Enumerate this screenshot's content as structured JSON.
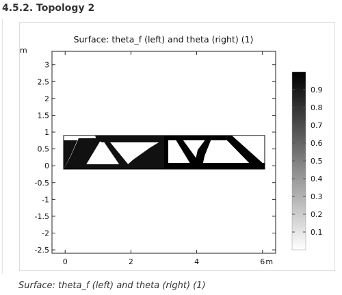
{
  "section": {
    "title": "4.5.2. Topology 2"
  },
  "figure": {
    "caption": "Surface: theta_f (left) and theta (right) (1)"
  },
  "chart_data": {
    "type": "heatmap",
    "title": "Surface: theta_f (left) and theta (right) (1)",
    "unit_label": "m",
    "x_unit": "m",
    "xlim": [
      -0.4,
      6.4
    ],
    "ylim": [
      -2.6,
      3.4
    ],
    "x_ticks": [
      {
        "value": 0,
        "label": "0"
      },
      {
        "value": 2,
        "label": "2"
      },
      {
        "value": 4,
        "label": "4"
      },
      {
        "value": 6,
        "label": "6"
      }
    ],
    "y_ticks": [
      {
        "value": 3,
        "label": "3"
      },
      {
        "value": 2.5,
        "label": "2.5"
      },
      {
        "value": 2,
        "label": "2"
      },
      {
        "value": 1.5,
        "label": "1.5"
      },
      {
        "value": 1,
        "label": "1"
      },
      {
        "value": 0.5,
        "label": "0.5"
      },
      {
        "value": 0,
        "label": "0"
      },
      {
        "value": -0.5,
        "label": "-0.5"
      },
      {
        "value": -1,
        "label": "-1"
      },
      {
        "value": -1.5,
        "label": "-1.5"
      },
      {
        "value": -2,
        "label": "-2"
      },
      {
        "value": -2.5,
        "label": "-2.5"
      }
    ],
    "domain": {
      "x": [
        0,
        6
      ],
      "y": [
        0,
        1
      ]
    },
    "colorbar": {
      "range": [
        0,
        1
      ],
      "ticks": [
        {
          "value": 0.9,
          "label": "0.9"
        },
        {
          "value": 0.8,
          "label": "0.8"
        },
        {
          "value": 0.7,
          "label": "0.7"
        },
        {
          "value": 0.6,
          "label": "0.6"
        },
        {
          "value": 0.5,
          "label": "0.5"
        },
        {
          "value": 0.4,
          "label": "0.4"
        },
        {
          "value": 0.3,
          "label": "0.3"
        },
        {
          "value": 0.2,
          "label": "0.2"
        },
        {
          "value": 0.1,
          "label": "0.1"
        }
      ],
      "colors": [
        "#ffffff",
        "#000000"
      ]
    }
  }
}
